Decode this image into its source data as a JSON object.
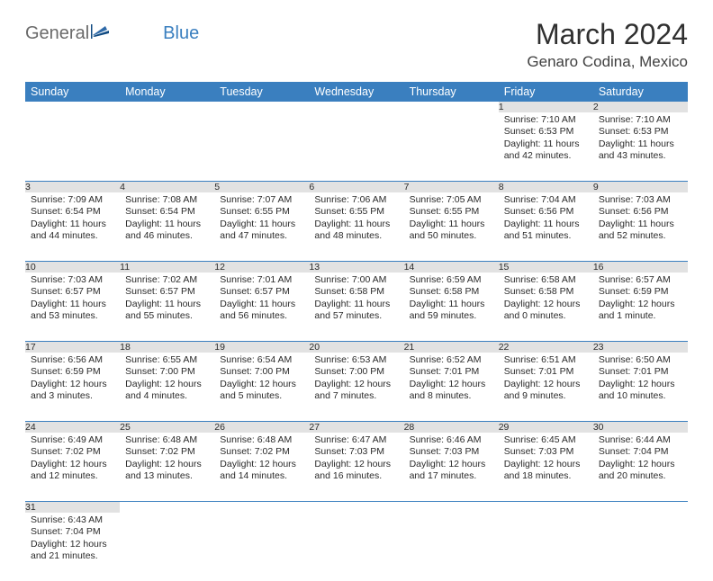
{
  "logo": {
    "text1": "General",
    "text2": "Blue"
  },
  "title": {
    "month": "March 2024",
    "location": "Genaro Codina, Mexico"
  },
  "colors": {
    "header_bg": "#3a7fbf",
    "header_text": "#ffffff",
    "daynum_bg": "#e2e2e2",
    "daynum_text": "#555555",
    "separator": "#3a7fbf",
    "body_text": "#2a2a2a",
    "logo_gray": "#6a6a6a",
    "logo_blue": "#3a7fbf"
  },
  "weekdays": [
    "Sunday",
    "Monday",
    "Tuesday",
    "Wednesday",
    "Thursday",
    "Friday",
    "Saturday"
  ],
  "weeks": [
    [
      null,
      null,
      null,
      null,
      null,
      {
        "n": "1",
        "sr": "7:10 AM",
        "ss": "6:53 PM",
        "dl": "11 hours and 42 minutes."
      },
      {
        "n": "2",
        "sr": "7:10 AM",
        "ss": "6:53 PM",
        "dl": "11 hours and 43 minutes."
      }
    ],
    [
      {
        "n": "3",
        "sr": "7:09 AM",
        "ss": "6:54 PM",
        "dl": "11 hours and 44 minutes."
      },
      {
        "n": "4",
        "sr": "7:08 AM",
        "ss": "6:54 PM",
        "dl": "11 hours and 46 minutes."
      },
      {
        "n": "5",
        "sr": "7:07 AM",
        "ss": "6:55 PM",
        "dl": "11 hours and 47 minutes."
      },
      {
        "n": "6",
        "sr": "7:06 AM",
        "ss": "6:55 PM",
        "dl": "11 hours and 48 minutes."
      },
      {
        "n": "7",
        "sr": "7:05 AM",
        "ss": "6:55 PM",
        "dl": "11 hours and 50 minutes."
      },
      {
        "n": "8",
        "sr": "7:04 AM",
        "ss": "6:56 PM",
        "dl": "11 hours and 51 minutes."
      },
      {
        "n": "9",
        "sr": "7:03 AM",
        "ss": "6:56 PM",
        "dl": "11 hours and 52 minutes."
      }
    ],
    [
      {
        "n": "10",
        "sr": "7:03 AM",
        "ss": "6:57 PM",
        "dl": "11 hours and 53 minutes."
      },
      {
        "n": "11",
        "sr": "7:02 AM",
        "ss": "6:57 PM",
        "dl": "11 hours and 55 minutes."
      },
      {
        "n": "12",
        "sr": "7:01 AM",
        "ss": "6:57 PM",
        "dl": "11 hours and 56 minutes."
      },
      {
        "n": "13",
        "sr": "7:00 AM",
        "ss": "6:58 PM",
        "dl": "11 hours and 57 minutes."
      },
      {
        "n": "14",
        "sr": "6:59 AM",
        "ss": "6:58 PM",
        "dl": "11 hours and 59 minutes."
      },
      {
        "n": "15",
        "sr": "6:58 AM",
        "ss": "6:58 PM",
        "dl": "12 hours and 0 minutes."
      },
      {
        "n": "16",
        "sr": "6:57 AM",
        "ss": "6:59 PM",
        "dl": "12 hours and 1 minute."
      }
    ],
    [
      {
        "n": "17",
        "sr": "6:56 AM",
        "ss": "6:59 PM",
        "dl": "12 hours and 3 minutes."
      },
      {
        "n": "18",
        "sr": "6:55 AM",
        "ss": "7:00 PM",
        "dl": "12 hours and 4 minutes."
      },
      {
        "n": "19",
        "sr": "6:54 AM",
        "ss": "7:00 PM",
        "dl": "12 hours and 5 minutes."
      },
      {
        "n": "20",
        "sr": "6:53 AM",
        "ss": "7:00 PM",
        "dl": "12 hours and 7 minutes."
      },
      {
        "n": "21",
        "sr": "6:52 AM",
        "ss": "7:01 PM",
        "dl": "12 hours and 8 minutes."
      },
      {
        "n": "22",
        "sr": "6:51 AM",
        "ss": "7:01 PM",
        "dl": "12 hours and 9 minutes."
      },
      {
        "n": "23",
        "sr": "6:50 AM",
        "ss": "7:01 PM",
        "dl": "12 hours and 10 minutes."
      }
    ],
    [
      {
        "n": "24",
        "sr": "6:49 AM",
        "ss": "7:02 PM",
        "dl": "12 hours and 12 minutes."
      },
      {
        "n": "25",
        "sr": "6:48 AM",
        "ss": "7:02 PM",
        "dl": "12 hours and 13 minutes."
      },
      {
        "n": "26",
        "sr": "6:48 AM",
        "ss": "7:02 PM",
        "dl": "12 hours and 14 minutes."
      },
      {
        "n": "27",
        "sr": "6:47 AM",
        "ss": "7:03 PM",
        "dl": "12 hours and 16 minutes."
      },
      {
        "n": "28",
        "sr": "6:46 AM",
        "ss": "7:03 PM",
        "dl": "12 hours and 17 minutes."
      },
      {
        "n": "29",
        "sr": "6:45 AM",
        "ss": "7:03 PM",
        "dl": "12 hours and 18 minutes."
      },
      {
        "n": "30",
        "sr": "6:44 AM",
        "ss": "7:04 PM",
        "dl": "12 hours and 20 minutes."
      }
    ],
    [
      {
        "n": "31",
        "sr": "6:43 AM",
        "ss": "7:04 PM",
        "dl": "12 hours and 21 minutes."
      },
      null,
      null,
      null,
      null,
      null,
      null
    ]
  ],
  "labels": {
    "sunrise": "Sunrise: ",
    "sunset": "Sunset: ",
    "daylight": "Daylight: "
  }
}
